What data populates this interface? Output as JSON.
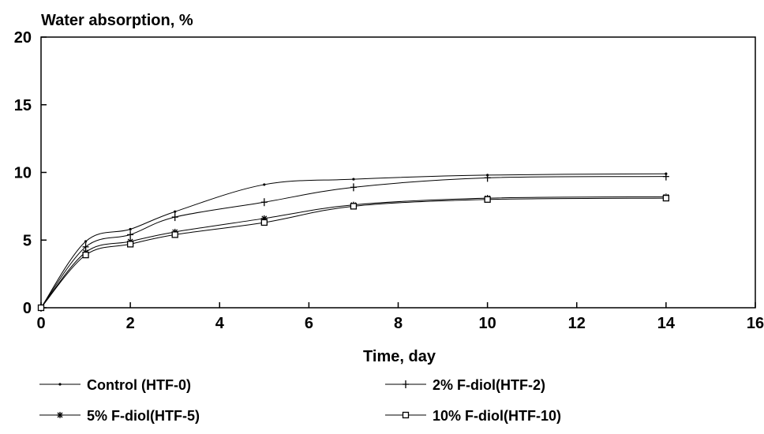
{
  "chart_data": {
    "type": "line",
    "title": "Water absorption, %",
    "xlabel": "Time, day",
    "ylabel": "",
    "xlim": [
      0,
      16
    ],
    "ylim": [
      0,
      20
    ],
    "xticks": [
      0,
      2,
      4,
      6,
      8,
      10,
      12,
      14,
      16
    ],
    "yticks": [
      0,
      5,
      10,
      15,
      20
    ],
    "grid": false,
    "legend_position": "bottom",
    "series": [
      {
        "name": "Control (HTF-0)",
        "marker": "dot",
        "x": [
          0,
          1,
          2,
          3,
          5,
          7,
          10,
          14
        ],
        "y": [
          0,
          4.9,
          5.8,
          7.1,
          9.1,
          9.5,
          9.8,
          9.9
        ]
      },
      {
        "name": "2% F-diol(HTF-2)",
        "marker": "plus",
        "x": [
          0,
          1,
          2,
          3,
          5,
          7,
          10,
          14
        ],
        "y": [
          0,
          4.5,
          5.4,
          6.7,
          7.8,
          8.9,
          9.6,
          9.7
        ]
      },
      {
        "name": "5% F-diol(HTF-5)",
        "marker": "star",
        "x": [
          0,
          1,
          2,
          3,
          5,
          7,
          10,
          14
        ],
        "y": [
          0,
          4.1,
          4.9,
          5.6,
          6.6,
          7.6,
          8.1,
          8.2
        ]
      },
      {
        "name": "10% F-diol(HTF-10)",
        "marker": "square",
        "x": [
          0,
          1,
          2,
          3,
          5,
          7,
          10,
          14
        ],
        "y": [
          0,
          3.9,
          4.7,
          5.4,
          6.3,
          7.5,
          8.0,
          8.1
        ]
      }
    ]
  }
}
